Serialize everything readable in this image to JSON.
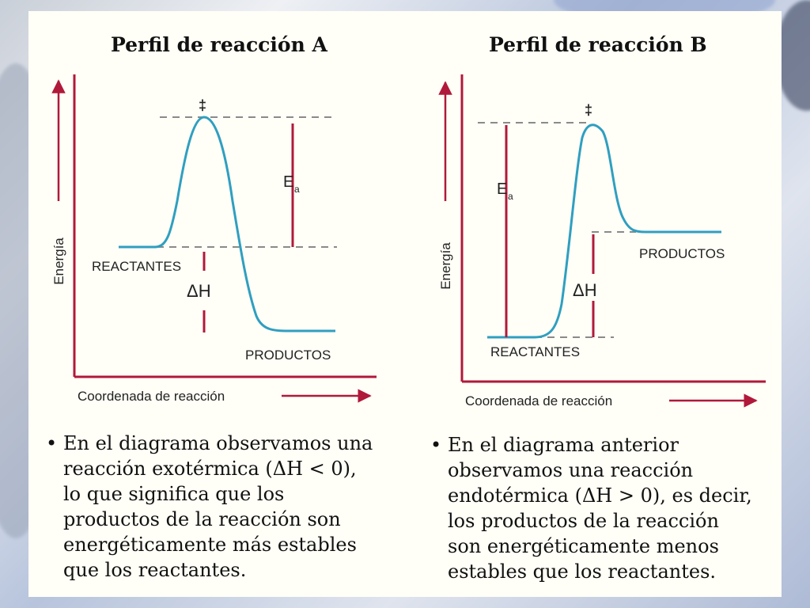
{
  "colors": {
    "curve": "#2f9fc0",
    "axis": "#b0193a",
    "dash": "#8a8a8a",
    "text": "#111111",
    "card": "#fffef7"
  },
  "panel_a": {
    "title": "Perfil de reacción A",
    "transition_marker": "‡",
    "ea_label": "E",
    "ea_subscript": "a",
    "dh_label": "ΔH",
    "reactants_label": "REACTANTES",
    "products_label": "PRODUCTOS",
    "y_axis_label": "Energía",
    "x_axis_label": "Coordenada de reacción",
    "bullet": "•",
    "description_lines": [
      "En el diagrama observamos una",
      "reacción exotérmica (ΔH < 0),",
      "lo que significa que los",
      "productos de la reacción son",
      "energéticamente más estables",
      "que los reactantes."
    ]
  },
  "panel_b": {
    "title": "Perfil de reacción B",
    "transition_marker": "‡",
    "ea_label": "E",
    "ea_subscript": "a",
    "dh_label": "ΔH",
    "reactants_label": "REACTANTES",
    "products_label": "PRODUCTOS",
    "y_axis_label": "Energía",
    "x_axis_label": "Coordenada de reacción",
    "bullet": "•",
    "description_lines": [
      "En el diagrama anterior",
      "observamos una reacción",
      "endotérmica (ΔH > 0), es decir,",
      "los productos de la reacción",
      "son energéticamente menos",
      "estables que los reactantes."
    ]
  }
}
